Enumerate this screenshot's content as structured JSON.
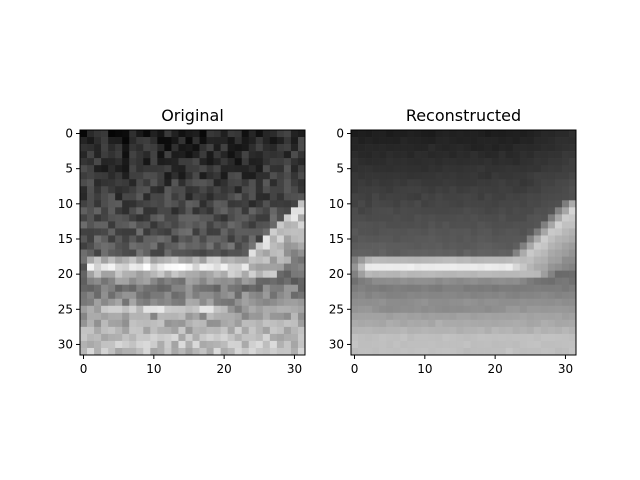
{
  "chart_data": [
    {
      "type": "heatmap",
      "title": "Original",
      "xlabel": "",
      "ylabel": "",
      "colormap": "gray",
      "image_shape": [
        32,
        32
      ],
      "xlim": [
        -0.5,
        31.5
      ],
      "ylim": [
        31.5,
        -0.5
      ],
      "x_ticks": [
        0,
        10,
        20,
        30
      ],
      "y_ticks": [
        0,
        5,
        10,
        15,
        20,
        25,
        30
      ],
      "content": "grayscale airplane: dark sky, bright fuselage near row 18-20, tail near columns 26-31, textured gray ground below"
    },
    {
      "type": "heatmap",
      "title": "Reconstructed",
      "xlabel": "",
      "ylabel": "",
      "colormap": "gray",
      "image_shape": [
        32,
        32
      ],
      "xlim": [
        -0.5,
        31.5
      ],
      "ylim": [
        31.5,
        -0.5
      ],
      "x_ticks": [
        0,
        10,
        20,
        30
      ],
      "y_ticks": [
        0,
        5,
        10,
        15,
        20,
        25,
        30
      ],
      "content": "blurred grayscale airplane: dark sky, bright fuselage near row 18-20, tail near columns 26-31, smooth light gray ground below"
    }
  ]
}
